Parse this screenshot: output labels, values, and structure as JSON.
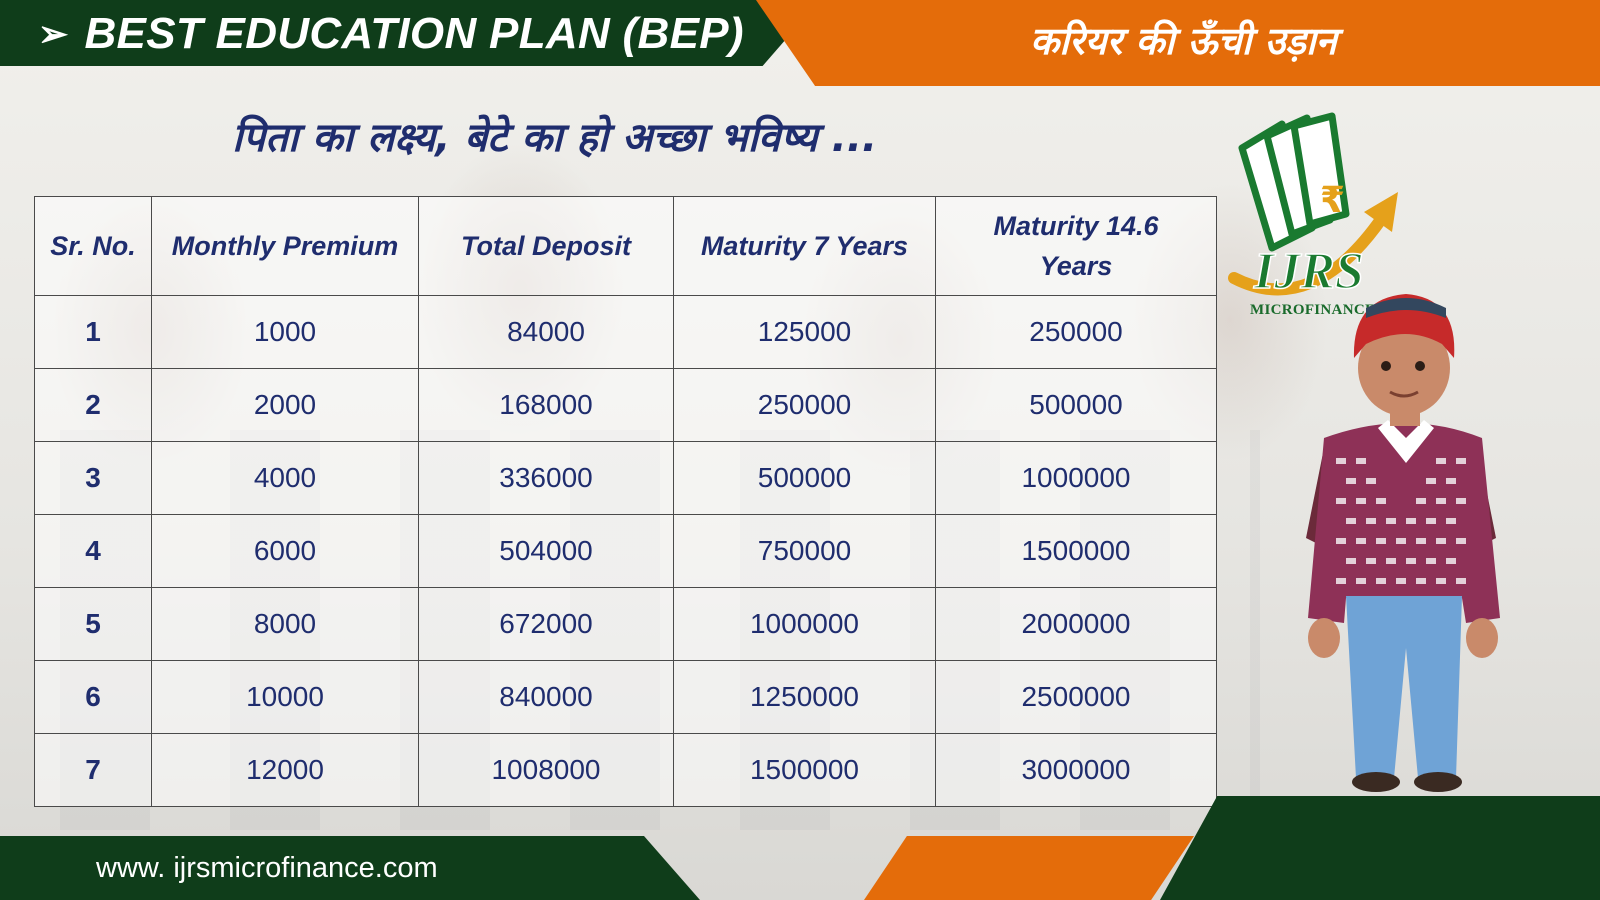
{
  "header": {
    "arrow_glyph": "➢",
    "title": "BEST EDUCATION PLAN (BEP)",
    "tagline": "करियर की ऊँची उड़ान"
  },
  "subtitle": "पिता का लक्ष्य, बेटे का  हो अच्छा भविष्य ...",
  "table": {
    "headers": [
      "Sr. No.",
      "Monthly Premium",
      "Total Deposit",
      "Maturity 7 Years",
      "Maturity 14.6 Years"
    ],
    "rows": [
      [
        "1",
        "1000",
        "84000",
        "125000",
        "250000"
      ],
      [
        "2",
        "2000",
        "168000",
        "250000",
        "500000"
      ],
      [
        "3",
        "4000",
        "336000",
        "500000",
        "1000000"
      ],
      [
        "4",
        "6000",
        "504000",
        "750000",
        "1500000"
      ],
      [
        "5",
        "8000",
        "672000",
        "1000000",
        "2000000"
      ],
      [
        "6",
        "10000",
        "840000",
        "1250000",
        "2500000"
      ],
      [
        "7",
        "12000",
        "1008000",
        "1500000",
        "3000000"
      ]
    ]
  },
  "logo": {
    "wordmark": "IJRS",
    "subtext": "MICROFINANCE",
    "symbol": "₹"
  },
  "footer": {
    "website": "www. ijrsmicrofinance.com"
  },
  "colors": {
    "green": "#0f3d1a",
    "orange": "#e46c0a",
    "navy_text": "#1f2d6e"
  }
}
